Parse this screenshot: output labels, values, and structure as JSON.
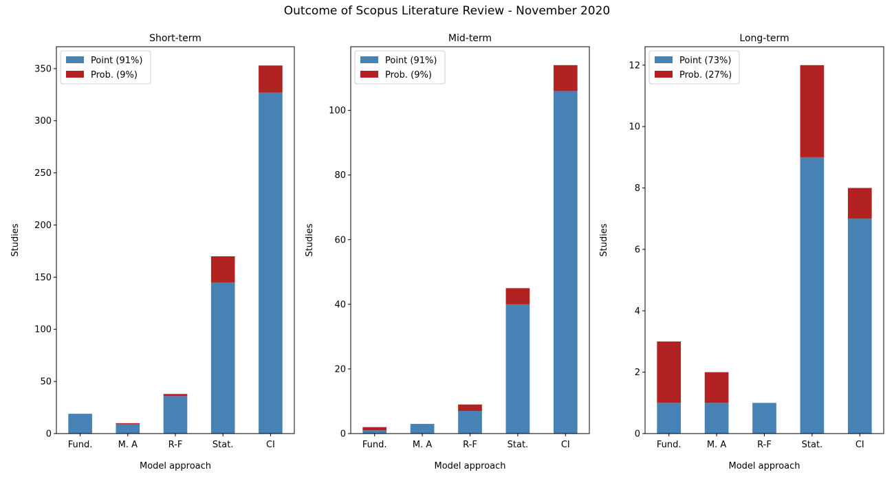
{
  "figure": {
    "title": "Outcome of Scopus Literature Review - November 2020"
  },
  "colors": {
    "point": "#4682b4",
    "prob": "#b22222"
  },
  "chart_data": [
    {
      "type": "bar",
      "stacked": true,
      "title": "Short-term",
      "xlabel": "Model approach",
      "ylabel": "Studies",
      "categories": [
        "Fund.",
        "M. A",
        "R-F",
        "Stat.",
        "CI"
      ],
      "series": [
        {
          "name": "Point (91%)",
          "values": [
            19,
            9,
            36,
            145,
            327
          ]
        },
        {
          "name": "Prob. (9%)",
          "values": [
            0,
            1,
            2,
            25,
            26
          ]
        }
      ],
      "ylim": [
        0,
        371
      ],
      "yticks": [
        0,
        50,
        100,
        150,
        200,
        250,
        300,
        350
      ],
      "legend": "upper-left",
      "grid": false
    },
    {
      "type": "bar",
      "stacked": true,
      "title": "Mid-term",
      "xlabel": "Model approach",
      "ylabel": "Studies",
      "categories": [
        "Fund.",
        "M. A",
        "R-F",
        "Stat.",
        "CI"
      ],
      "series": [
        {
          "name": "Point (91%)",
          "values": [
            1,
            3,
            7,
            40,
            106
          ]
        },
        {
          "name": "Prob. (9%)",
          "values": [
            1,
            0,
            2,
            5,
            8
          ]
        }
      ],
      "ylim": [
        0,
        119.7
      ],
      "yticks": [
        0,
        20,
        40,
        60,
        80,
        100
      ],
      "legend": "upper-left",
      "grid": false
    },
    {
      "type": "bar",
      "stacked": true,
      "title": "Long-term",
      "xlabel": "Model approach",
      "ylabel": "Studies",
      "categories": [
        "Fund.",
        "M. A",
        "R-F",
        "Stat.",
        "CI"
      ],
      "series": [
        {
          "name": "Point (73%)",
          "values": [
            1,
            1,
            1,
            9,
            7
          ]
        },
        {
          "name": "Prob. (27%)",
          "values": [
            2,
            1,
            0,
            3,
            1
          ]
        }
      ],
      "ylim": [
        0,
        12.6
      ],
      "yticks": [
        0,
        2,
        4,
        6,
        8,
        10,
        12
      ],
      "legend": "upper-left",
      "grid": false
    }
  ]
}
